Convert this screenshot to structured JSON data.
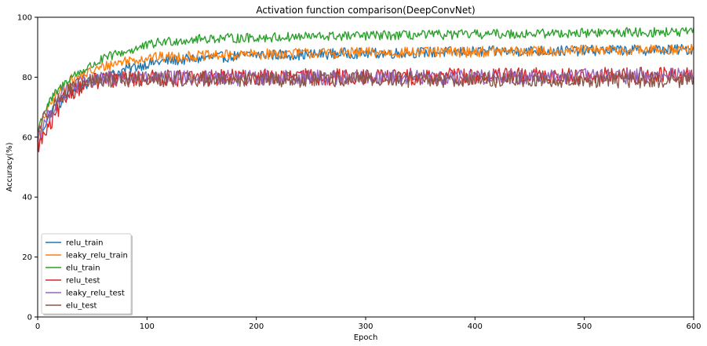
{
  "chart_data": {
    "type": "line",
    "title": "Activation function comparison(DeepConvNet)",
    "xlabel": "Epoch",
    "ylabel": "Accuracy(%)",
    "xlim": [
      0,
      600
    ],
    "ylim": [
      0,
      100
    ],
    "xticks": [
      0,
      100,
      200,
      300,
      400,
      500,
      600
    ],
    "yticks": [
      0,
      20,
      40,
      60,
      80,
      100
    ],
    "grid": false,
    "legend": "lower-left",
    "series": [
      {
        "name": "relu_train",
        "color": "#1f77b4",
        "x": [
          0,
          5,
          10,
          15,
          20,
          25,
          30,
          40,
          50,
          60,
          70,
          80,
          90,
          100,
          120,
          140,
          160,
          180,
          200,
          220,
          240,
          260,
          280,
          300,
          320,
          340,
          360,
          380,
          400,
          420,
          440,
          460,
          480,
          500,
          520,
          540,
          560,
          580,
          600
        ],
        "y": [
          55,
          63,
          67,
          70,
          71,
          73,
          75,
          77,
          78.5,
          80,
          81,
          82.5,
          83.5,
          84.5,
          85.5,
          86,
          86.5,
          87,
          87.5,
          87.5,
          87.5,
          87.7,
          88,
          88,
          88,
          88.2,
          88.3,
          88.4,
          88.5,
          88.6,
          88.7,
          88.8,
          88.8,
          88.9,
          89,
          89,
          89.1,
          89.2,
          89.3
        ],
        "noise": 0.9
      },
      {
        "name": "leaky_relu_train",
        "color": "#ff7f0e",
        "x": [
          0,
          5,
          10,
          15,
          20,
          25,
          30,
          40,
          50,
          60,
          70,
          80,
          90,
          100,
          120,
          140,
          160,
          180,
          200,
          220,
          240,
          260,
          280,
          300,
          320,
          340,
          360,
          380,
          400,
          420,
          440,
          460,
          480,
          500,
          520,
          540,
          560,
          580,
          600
        ],
        "y": [
          57,
          66,
          70,
          73,
          75,
          77,
          79,
          80.5,
          82,
          83.5,
          84.5,
          85.5,
          86,
          86.5,
          86.8,
          87,
          87.2,
          87.4,
          87.6,
          87.8,
          88,
          88,
          88.1,
          88.2,
          88.2,
          88.3,
          88.3,
          88.4,
          88.5,
          88.6,
          88.6,
          88.7,
          88.8,
          88.9,
          89,
          89,
          89.1,
          89.2,
          89.3
        ],
        "noise": 0.9
      },
      {
        "name": "elu_train",
        "color": "#2ca02c",
        "x": [
          0,
          5,
          10,
          15,
          20,
          25,
          30,
          40,
          50,
          60,
          70,
          80,
          90,
          100,
          110,
          120,
          140,
          160,
          180,
          200,
          220,
          240,
          260,
          280,
          300,
          320,
          340,
          360,
          380,
          400,
          420,
          440,
          460,
          480,
          500,
          520,
          540,
          560,
          580,
          600
        ],
        "y": [
          62,
          68,
          71,
          74,
          76,
          78,
          80,
          82,
          84,
          86,
          87.5,
          88.5,
          89.5,
          90.5,
          91.5,
          92,
          92.5,
          93,
          93,
          93.2,
          93.3,
          93.5,
          93.6,
          93.7,
          93.8,
          94,
          94,
          94.1,
          94.2,
          94.3,
          94.4,
          94.5,
          94.6,
          94.7,
          94.8,
          94.9,
          95,
          95,
          95,
          95
        ],
        "noise": 0.8
      },
      {
        "name": "relu_test",
        "color": "#d62728",
        "x": [
          0,
          5,
          10,
          15,
          20,
          25,
          30,
          40,
          50,
          60,
          70,
          80,
          100,
          150,
          200,
          250,
          300,
          350,
          400,
          450,
          500,
          550,
          600
        ],
        "y": [
          57,
          60,
          63,
          66,
          70,
          73,
          75,
          77,
          78.5,
          79,
          79.3,
          79.5,
          79.6,
          79.8,
          80,
          80,
          80.1,
          80.2,
          80.3,
          80.4,
          80.5,
          80.6,
          80.6
        ],
        "noise": 1.4
      },
      {
        "name": "leaky_relu_test",
        "color": "#9467bd",
        "x": [
          0,
          5,
          10,
          15,
          20,
          25,
          30,
          40,
          50,
          60,
          70,
          80,
          100,
          150,
          200,
          250,
          300,
          350,
          400,
          450,
          500,
          550,
          600
        ],
        "y": [
          60,
          64,
          67,
          70,
          73,
          75,
          76.5,
          78,
          79,
          79.3,
          79.5,
          79.6,
          79.6,
          79.7,
          79.8,
          79.9,
          80,
          80,
          80.1,
          80.2,
          80.3,
          80.4,
          80.5
        ],
        "noise": 1.3
      },
      {
        "name": "elu_test",
        "color": "#8c564b",
        "x": [
          0,
          5,
          10,
          15,
          20,
          25,
          30,
          40,
          50,
          60,
          70,
          80,
          100,
          150,
          200,
          250,
          300,
          350,
          400,
          450,
          500,
          550,
          600
        ],
        "y": [
          62,
          66,
          69,
          71,
          73,
          74.5,
          76,
          77.5,
          78.5,
          79,
          79.2,
          79.3,
          79.3,
          79.4,
          79.3,
          79.2,
          79.2,
          79.1,
          79.1,
          79,
          79,
          79,
          79
        ],
        "noise": 1.3
      }
    ]
  }
}
